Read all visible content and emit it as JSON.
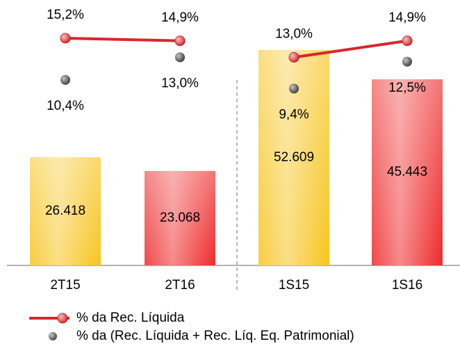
{
  "chart_data": {
    "type": "bar",
    "categories": [
      "2T15",
      "2T16",
      "1S15",
      "1S16"
    ],
    "values": [
      26418,
      23068,
      52609,
      45443
    ],
    "value_labels": [
      "26.418",
      "23.068",
      "52.609",
      "45.443"
    ],
    "colors": [
      "#f7c51e",
      "#ee2a2a",
      "#f7c51e",
      "#ee2a2a"
    ],
    "divider_after": 1,
    "series": [
      {
        "name": "% da Rec. Líquida",
        "type": "line",
        "color": "#d9262b",
        "values": [
          15.2,
          14.9,
          13.0,
          14.9
        ],
        "value_labels": [
          "15,2%",
          "14,9%",
          "13,0%",
          "14,9%"
        ]
      },
      {
        "name": "% da (Rec. Líquida + Rec. Líq. Eq. Patrimonial)",
        "type": "scatter",
        "color": "#3a3a3a",
        "values": [
          10.4,
          13.0,
          9.4,
          12.5
        ],
        "value_labels": [
          "10,4%",
          "13,0%",
          "9,4%",
          "12,5%"
        ]
      }
    ]
  }
}
